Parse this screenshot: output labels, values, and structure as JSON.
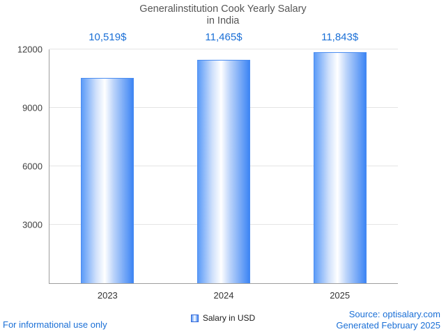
{
  "title": {
    "line1": "Generalinstitution Cook Yearly Salary",
    "line2": "in India"
  },
  "chart_data": {
    "type": "bar",
    "title": "Generalinstitution Cook Yearly Salary in India",
    "categories": [
      "2023",
      "2024",
      "2025"
    ],
    "series": [
      {
        "name": "Salary in USD",
        "values": [
          10519,
          11465,
          11843
        ]
      }
    ],
    "values": [
      10519,
      11465,
      11843
    ],
    "value_labels": [
      "10,519$",
      "11,465$",
      "11,843$"
    ],
    "ylim": [
      0,
      12000
    ],
    "yticks": [
      3000,
      6000,
      9000,
      12000
    ],
    "ytick_labels": [
      "3000",
      "6000",
      "9000",
      "12000"
    ],
    "grid": true,
    "legend": {
      "label": "Salary in USD",
      "position": "bottom"
    }
  },
  "footer": {
    "disclaimer": "For informational use only",
    "source": "Source: optisalary.com",
    "generated": "Generated February 2025"
  },
  "colors": {
    "accent_text": "#1a6fd6",
    "title_text": "#555555",
    "bar_gradient_left": "#5b9bf8",
    "bar_gradient_center": "#ffffff",
    "bar_gradient_right": "#3d85f4",
    "bar_border": "#4a8cf0",
    "gridline": "#e4e4e4",
    "axis": "#9e9e9e"
  }
}
